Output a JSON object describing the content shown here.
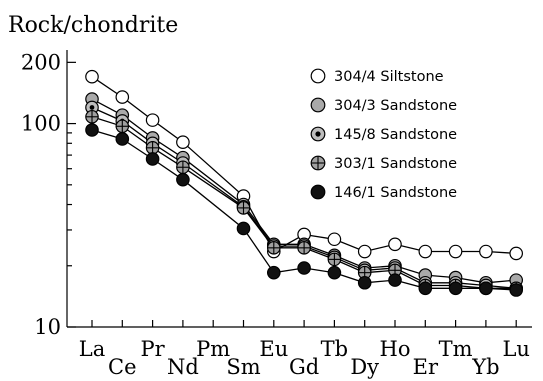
{
  "chart_data": {
    "type": "line",
    "title": "",
    "ylabel": "Rock/chondrite",
    "xlabel": "",
    "yscale": "log",
    "ylim": [
      10,
      230
    ],
    "yticks": [
      {
        "value": 10,
        "label": "10"
      },
      {
        "value": 100,
        "label": "100"
      },
      {
        "value": 200,
        "label": "200"
      }
    ],
    "categories": [
      "La",
      "Ce",
      "Pr",
      "Nd",
      "Pm",
      "Sm",
      "Eu",
      "Gd",
      "Tb",
      "Dy",
      "Ho",
      "Er",
      "Tm",
      "Yb",
      "Lu"
    ],
    "legend_position": "top-right",
    "grid": false,
    "series": [
      {
        "name": "304/4 Siltstone",
        "marker": "open-circle",
        "values": [
          170,
          135,
          104,
          81,
          null,
          44,
          23.5,
          28.5,
          27,
          23.5,
          25.5,
          23.5,
          23.5,
          23.5,
          23
        ]
      },
      {
        "name": "304/3 Sandstone",
        "marker": "gray-circle",
        "values": [
          132,
          110,
          85,
          68,
          null,
          40,
          25.5,
          25.5,
          22.5,
          19.5,
          20,
          18,
          17.5,
          16.5,
          17
        ]
      },
      {
        "name": "145/8 Sandstone",
        "marker": "dotted-circle",
        "values": [
          120,
          103,
          80,
          64,
          null,
          39,
          25,
          25,
          22,
          19,
          19.5,
          16.5,
          16.5,
          16,
          15.5
        ]
      },
      {
        "name": "303/1 Sandstone",
        "marker": "plus-circle",
        "values": [
          108,
          97,
          76,
          61,
          null,
          38.5,
          24.5,
          24.5,
          21.5,
          18.5,
          19,
          16,
          16,
          15.5,
          15.5
        ]
      },
      {
        "name": "146/1 Sandstone",
        "marker": "black-circle",
        "values": [
          93,
          84,
          67,
          53,
          null,
          30.5,
          18.5,
          19.5,
          18.5,
          16.5,
          17,
          15.5,
          15.5,
          15.5,
          15.2
        ]
      }
    ]
  }
}
